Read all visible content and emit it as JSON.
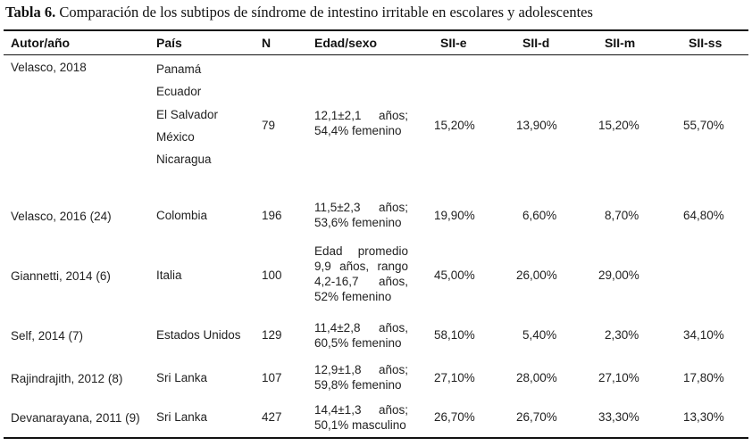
{
  "caption": {
    "label": "Tabla 6.",
    "text": " Comparación de los subtipos de síndrome de intestino irritable en escolares y adolescentes"
  },
  "headers": [
    "Autor/año",
    "País",
    "N",
    "Edad/sexo",
    "SII-e",
    "SII-d",
    "SII-m",
    "SII-ss"
  ],
  "rows": [
    {
      "autor": "Velasco, 2018",
      "pais": [
        "Panamá",
        "Ecuador",
        "El Salvador",
        "México",
        "Nicaragua"
      ],
      "n": "79",
      "edad": [
        "12,1±2,1 años;",
        "54,4% femenino"
      ],
      "sii_e": "15,20%",
      "sii_d": "13,90%",
      "sii_m": "15,20%",
      "sii_ss": "55,70%"
    },
    {
      "autor": "Velasco, 2016 (24)",
      "pais": [
        "Colombia"
      ],
      "n": "196",
      "edad": [
        "11,5±2,3 años;",
        "53,6% femenino"
      ],
      "sii_e": "19,90%",
      "sii_d": "6,60%",
      "sii_m": "8,70%",
      "sii_ss": "64,80%"
    },
    {
      "autor": "Giannetti, 2014 (6)",
      "pais": [
        "Italia"
      ],
      "n": "100",
      "edad": [
        "Edad promedio",
        "9,9 años, rango",
        "4,2-16,7 años,",
        "52% femenino"
      ],
      "sii_e": "45,00%",
      "sii_d": "26,00%",
      "sii_m": "29,00%",
      "sii_ss": ""
    },
    {
      "autor": "Self, 2014 (7)",
      "pais": [
        "Estados Unidos"
      ],
      "n": "129",
      "edad": [
        "11,4±2,8 años,",
        "60,5% femenino"
      ],
      "sii_e": "58,10%",
      "sii_d": "5,40%",
      "sii_m": "2,30%",
      "sii_ss": "34,10%"
    },
    {
      "autor": "Rajindrajith, 2012 (8)",
      "pais": [
        "Sri Lanka"
      ],
      "n": "107",
      "edad": [
        "12,9±1,8 años;",
        "59,8% femenino"
      ],
      "sii_e": "27,10%",
      "sii_d": "28,00%",
      "sii_m": "27,10%",
      "sii_ss": "17,80%"
    },
    {
      "autor": "Devanarayana, 2011 (9)",
      "pais": [
        "Sri Lanka"
      ],
      "n": "427",
      "edad": [
        "14,4±1,3 años;",
        "50,1% masculino"
      ],
      "sii_e": "26,70%",
      "sii_d": "26,70%",
      "sii_m": "33,30%",
      "sii_ss": "13,30%"
    }
  ]
}
